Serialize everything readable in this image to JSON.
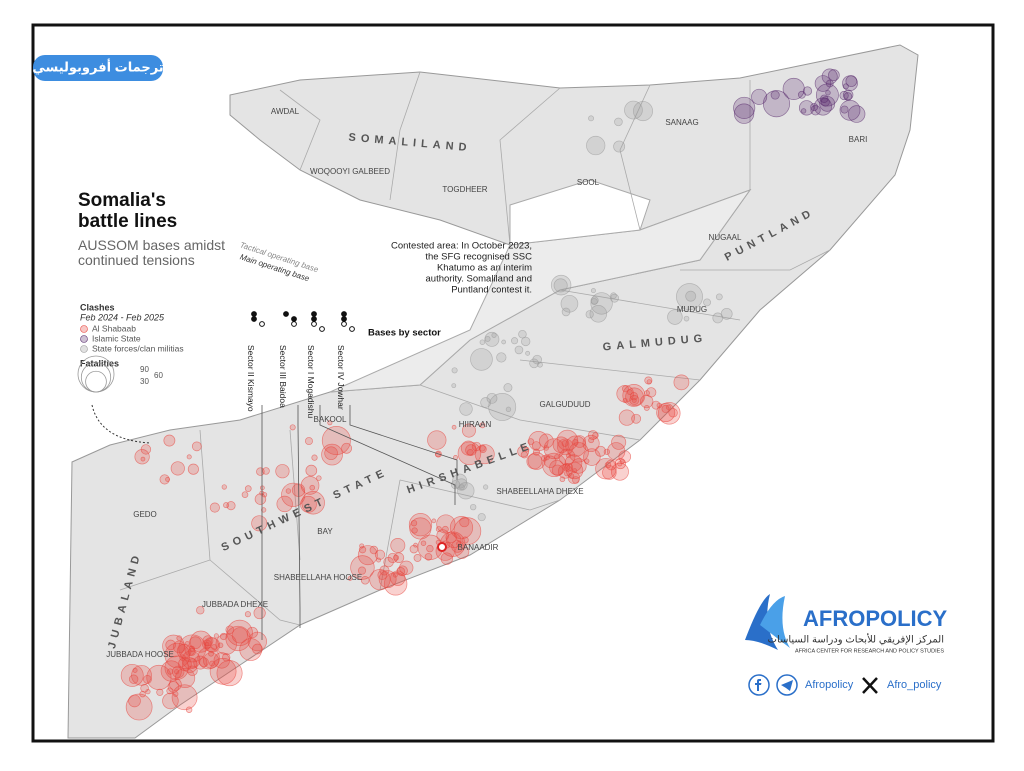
{
  "tag": "ترجمات أفروبوليسي",
  "title": "Somalia's battle lines",
  "subtitle": "AUSSOM bases amidst continued tensions",
  "base_types": [
    "Tactical operating base",
    "Main operating base"
  ],
  "legend": {
    "title": "Clashes",
    "period": "Feb 2024 - Feb 2025",
    "groups": [
      {
        "name": "Al Shabaab",
        "color": "#e8463f"
      },
      {
        "name": "Islamic State",
        "color": "#5a2d6e"
      },
      {
        "name": "State forces/clan militias",
        "color": "#9a9a9a"
      }
    ],
    "size_title": "Fatalities",
    "sizes": [
      90,
      60,
      30
    ]
  },
  "sectors": {
    "title": "Bases by sector",
    "items": [
      "Sector II Kismayo",
      "Sector III Baidoa",
      "Sector I Mogadishu",
      "Sector IV Jowhar"
    ]
  },
  "annotation": [
    "Contested area: In October 2023,",
    "the SFG recognised SSC",
    "Khatumo as an interim",
    "authority. Somaliland and",
    "Puntland contest it."
  ],
  "states": [
    "SOMALILAND",
    "PUNTLAND",
    "GALMUDUG",
    "HIRSHABELLE",
    "SOUTHWEST STATE",
    "JUBALAND"
  ],
  "regions": [
    "AWDAL",
    "WOQOOYI GALBEED",
    "TOGDHEER",
    "SANAAG",
    "SOOL",
    "BARI",
    "NUGAAL",
    "MUDUG",
    "GALGUDUUD",
    "HIIRAAN",
    "SHABEELLAHA DHEXE",
    "BANAADIR",
    "SHABEELLAHA HOOSE",
    "BAY",
    "BAKOOL",
    "GEDO",
    "JUBBADA DHEXE",
    "JUBBADA HOOSE"
  ],
  "footer": {
    "brand": "AFROPOLICY",
    "brand_ar": "المركز الإفريقي للأبحاث ودراسة السياسات",
    "brand_en": "AFRICA CENTER FOR RESEARCH AND POLICY STUDIES",
    "handle_fb": "Afropolicy",
    "handle_x": "Afro_policy"
  }
}
